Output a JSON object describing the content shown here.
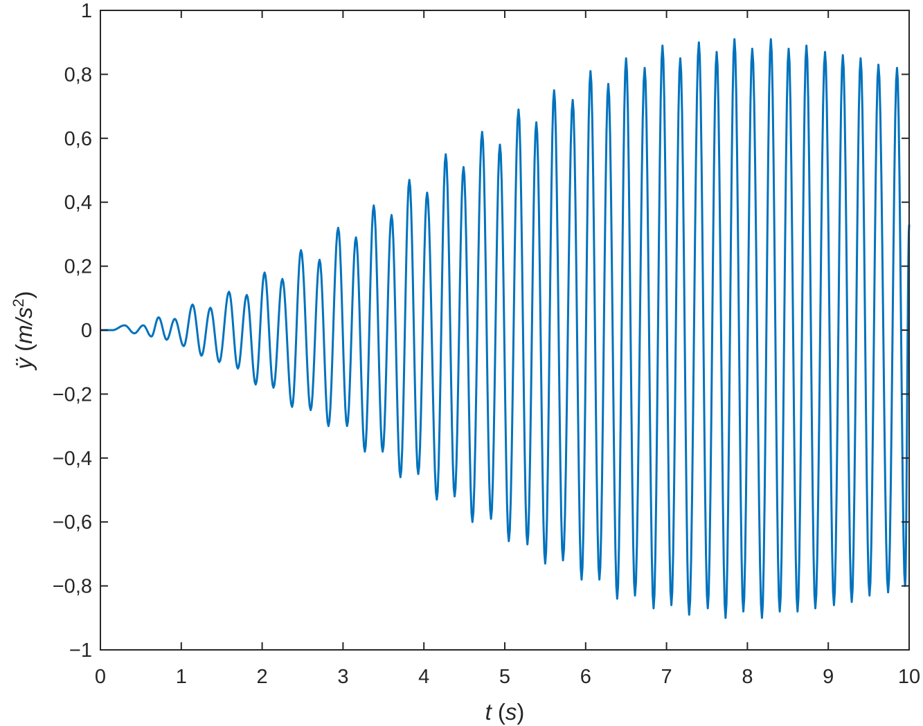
{
  "chart_data": {
    "type": "line",
    "xlabel": "t (s)",
    "ylabel": "ÿ (m/s2)",
    "xlim": [
      0,
      10
    ],
    "ylim": [
      -1,
      1
    ],
    "xticks": [
      0,
      1,
      2,
      3,
      4,
      5,
      6,
      7,
      8,
      9,
      10
    ],
    "xtick_labels": [
      "0",
      "1",
      "2",
      "3",
      "4",
      "5",
      "6",
      "7",
      "8",
      "9",
      "10"
    ],
    "yticks": [
      -1,
      -0.8,
      -0.6,
      -0.4,
      -0.2,
      0,
      0.2,
      0.4,
      0.6,
      0.8,
      1
    ],
    "ytick_labels": [
      "−1",
      "−0,8",
      "−0,6",
      "−0,4",
      "−0,2",
      "0",
      "0,2",
      "0,4",
      "0,6",
      "0,8",
      "1"
    ],
    "grid": false,
    "series": [
      {
        "color": "#0072BD",
        "x": [
          0,
          0.15,
          0.3,
          0.42,
          0.53,
          0.63,
          0.72,
          0.82,
          0.92,
          1.03,
          1.14,
          1.25,
          1.36,
          1.47,
          1.59,
          1.7,
          1.81,
          1.92,
          2.03,
          2.14,
          2.25,
          2.37,
          2.48,
          2.6,
          2.71,
          2.82,
          2.94,
          3.05,
          3.16,
          3.27,
          3.38,
          3.49,
          3.6,
          3.71,
          3.82,
          3.93,
          4.04,
          4.16,
          4.27,
          4.38,
          4.49,
          4.6,
          4.72,
          4.83,
          4.94,
          5.05,
          5.17,
          5.28,
          5.39,
          5.5,
          5.61,
          5.72,
          5.84,
          5.95,
          6.06,
          6.17,
          6.28,
          6.39,
          6.5,
          6.61,
          6.73,
          6.84,
          6.95,
          7.06,
          7.17,
          7.28,
          7.4,
          7.51,
          7.62,
          7.73,
          7.84,
          7.95,
          8.06,
          8.18,
          8.29,
          8.4,
          8.51,
          8.62,
          8.73,
          8.84,
          8.96,
          9.07,
          9.18,
          9.29,
          9.4,
          9.51,
          9.62,
          9.74,
          9.85,
          9.95,
          10.0
        ],
        "y": [
          0,
          0,
          0.015,
          -0.01,
          0.015,
          -0.02,
          0.04,
          -0.03,
          0.035,
          -0.05,
          0.08,
          -0.08,
          0.07,
          -0.1,
          0.12,
          -0.12,
          0.11,
          -0.17,
          0.18,
          -0.18,
          0.16,
          -0.24,
          0.25,
          -0.25,
          0.22,
          -0.3,
          0.32,
          -0.3,
          0.29,
          -0.38,
          0.39,
          -0.38,
          0.36,
          -0.46,
          0.47,
          -0.45,
          0.43,
          -0.53,
          0.55,
          -0.52,
          0.51,
          -0.6,
          0.62,
          -0.59,
          0.58,
          -0.66,
          0.69,
          -0.67,
          0.65,
          -0.73,
          0.75,
          -0.72,
          0.72,
          -0.78,
          0.81,
          -0.78,
          0.77,
          -0.84,
          0.85,
          -0.83,
          0.82,
          -0.87,
          0.89,
          -0.86,
          0.85,
          -0.89,
          0.9,
          -0.87,
          0.87,
          -0.9,
          0.91,
          -0.88,
          0.88,
          -0.9,
          0.91,
          -0.88,
          0.88,
          -0.88,
          0.89,
          -0.87,
          0.87,
          -0.86,
          0.86,
          -0.85,
          0.85,
          -0.83,
          0.83,
          -0.82,
          0.82,
          -0.8,
          0.33
        ]
      }
    ]
  }
}
